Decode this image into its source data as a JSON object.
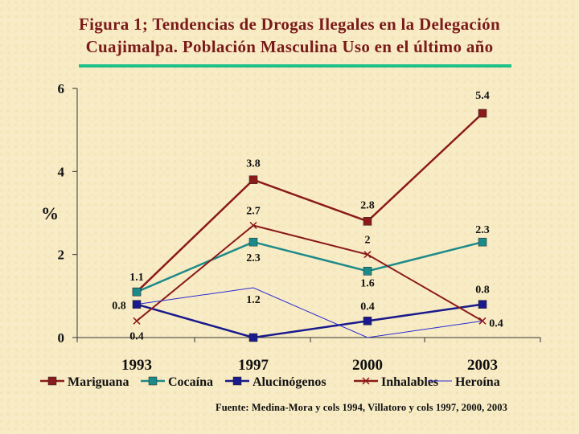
{
  "title_line1": "Figura 1; Tendencias de Drogas Ilegales en  la Delegación",
  "title_line2": "Cuajimalpa. Población Masculina Uso en el último año",
  "source": "Fuente: Medina-Mora y cols 1994, Villatoro y cols 1997, 2000, 2003",
  "chart_data": {
    "type": "line",
    "title": "Figura 1; Tendencias de Drogas Ilegales en  la Delegación Cuajimalpa. Población Masculina Uso en el último año",
    "xlabel": "",
    "ylabel": "%",
    "categories": [
      "1993",
      "1997",
      "2000",
      "2003"
    ],
    "ylim": [
      0,
      6
    ],
    "yticks": [
      "0",
      "2",
      "4",
      "6"
    ],
    "legend_position": "bottom",
    "grid": false,
    "series": [
      {
        "name": "Mariguana",
        "values": [
          1.1,
          3.8,
          2.8,
          5.4
        ],
        "color": "#8b1a1a",
        "marker": "square",
        "labels": [
          null,
          "3.8",
          "2.8",
          "5.4"
        ]
      },
      {
        "name": "Cocaína",
        "values": [
          1.1,
          2.3,
          1.6,
          2.3
        ],
        "color": "#1d8a8a",
        "marker": "square",
        "labels": [
          "1.1",
          "2.3",
          "1.6",
          "2.3"
        ]
      },
      {
        "name": "Alucinógenos",
        "values": [
          0.8,
          0.0,
          0.4,
          0.8
        ],
        "color": "#1a1a8c",
        "marker": "square",
        "labels": [
          "0.8",
          null,
          "0.4",
          "0.8"
        ]
      },
      {
        "name": "Inhalables",
        "values": [
          0.4,
          2.7,
          2.0,
          0.4
        ],
        "color": "#8b1a1a",
        "marker": "x",
        "labels": [
          "0.4",
          "2.7",
          "2",
          "0.4"
        ]
      },
      {
        "name": "Heroína",
        "values": [
          0.8,
          1.2,
          0.0,
          0.4
        ],
        "color": "#2a2ad0",
        "marker": "none",
        "labels": [
          null,
          "1.2",
          null,
          null
        ]
      }
    ]
  }
}
